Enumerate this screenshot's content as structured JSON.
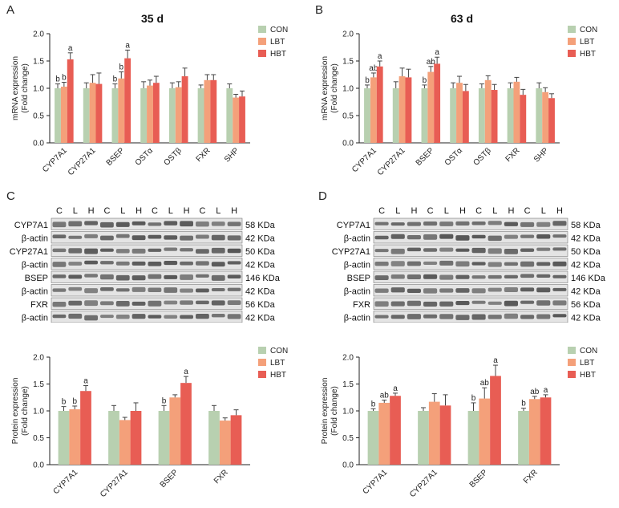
{
  "colors": {
    "con": "#b8d0b0",
    "lbt": "#f4a07a",
    "hbt": "#e85d54",
    "axis": "#222222"
  },
  "panel_letters": {
    "a": "A",
    "b": "B",
    "c": "C",
    "d": "D"
  },
  "legend": [
    "CON",
    "LBT",
    "HBT"
  ],
  "chart_data": [
    {
      "id": "A",
      "type": "bar",
      "title": "35 d",
      "ylabel_lines": [
        "mRNA expression",
        "(Fold change)"
      ],
      "ylim": [
        0,
        2.0
      ],
      "yticks": [
        "0.0",
        "0.5",
        "1.0",
        "1.5",
        "2.0"
      ],
      "categories": [
        "CYP7A1",
        "CYP27A1",
        "BSEP",
        "OSTα",
        "OSTβ",
        "FXR",
        "SHP"
      ],
      "series": [
        {
          "name": "CON",
          "values": [
            1.0,
            1.0,
            1.0,
            1.0,
            1.0,
            1.0,
            1.0
          ],
          "err": [
            0.08,
            0.1,
            0.08,
            0.12,
            0.1,
            0.06,
            0.08
          ]
        },
        {
          "name": "LBT",
          "values": [
            1.03,
            1.1,
            1.18,
            1.05,
            1.02,
            1.15,
            0.83
          ],
          "err": [
            0.08,
            0.15,
            0.12,
            0.1,
            0.1,
            0.1,
            0.06
          ]
        },
        {
          "name": "HBT",
          "values": [
            1.53,
            1.08,
            1.55,
            1.1,
            1.22,
            1.15,
            0.85
          ],
          "err": [
            0.12,
            0.2,
            0.15,
            0.12,
            0.15,
            0.1,
            0.1
          ]
        }
      ],
      "letters": [
        [
          "b",
          "b",
          "a"
        ],
        [
          "",
          "",
          ""
        ],
        [
          "b",
          "b",
          "a"
        ],
        [
          "",
          "",
          ""
        ],
        [
          "",
          "",
          ""
        ],
        [
          "",
          "",
          ""
        ],
        [
          "",
          "",
          ""
        ]
      ]
    },
    {
      "id": "B",
      "type": "bar",
      "title": "63 d",
      "ylabel_lines": [
        "mRNA expression",
        "(Fold change)"
      ],
      "ylim": [
        0,
        2.0
      ],
      "yticks": [
        "0.0",
        "0.5",
        "1.0",
        "1.5",
        "2.0"
      ],
      "categories": [
        "CYP7A1",
        "CYP27A1",
        "BSEP",
        "OSTα",
        "OSTβ",
        "FXR",
        "SHP"
      ],
      "series": [
        {
          "name": "CON",
          "values": [
            1.0,
            1.0,
            1.0,
            1.0,
            1.0,
            1.0,
            1.0
          ],
          "err": [
            0.06,
            0.12,
            0.06,
            0.1,
            0.08,
            0.1,
            0.1
          ]
        },
        {
          "name": "LBT",
          "values": [
            1.2,
            1.22,
            1.3,
            1.1,
            1.15,
            1.12,
            0.93
          ],
          "err": [
            0.08,
            0.15,
            0.1,
            0.12,
            0.08,
            0.08,
            0.08
          ]
        },
        {
          "name": "HBT",
          "values": [
            1.4,
            1.2,
            1.45,
            0.95,
            0.97,
            0.88,
            0.82
          ],
          "err": [
            0.1,
            0.15,
            0.12,
            0.12,
            0.1,
            0.1,
            0.08
          ]
        }
      ],
      "letters": [
        [
          "b",
          "ab",
          "a"
        ],
        [
          "",
          "",
          ""
        ],
        [
          "b",
          "ab",
          "a"
        ],
        [
          "",
          "",
          ""
        ],
        [
          "",
          "",
          ""
        ],
        [
          "",
          "",
          ""
        ],
        [
          "",
          "",
          ""
        ]
      ]
    },
    {
      "id": "C",
      "type": "bar",
      "title": "",
      "ylabel_lines": [
        "Protein expression",
        "(Fold change)"
      ],
      "ylim": [
        0,
        2.0
      ],
      "yticks": [
        "0.0",
        "0.5",
        "1.0",
        "1.5",
        "2.0"
      ],
      "categories": [
        "CYP7A1",
        "CYP27A1",
        "BSEP",
        "FXR"
      ],
      "series": [
        {
          "name": "CON",
          "values": [
            1.0,
            1.0,
            1.0,
            1.0
          ],
          "err": [
            0.08,
            0.1,
            0.1,
            0.1
          ]
        },
        {
          "name": "LBT",
          "values": [
            1.03,
            0.83,
            1.25,
            0.82
          ],
          "err": [
            0.06,
            0.05,
            0.05,
            0.05
          ]
        },
        {
          "name": "HBT",
          "values": [
            1.37,
            1.0,
            1.52,
            0.92
          ],
          "err": [
            0.1,
            0.15,
            0.12,
            0.1
          ]
        }
      ],
      "letters": [
        [
          "b",
          "b",
          "a"
        ],
        [
          "",
          "",
          ""
        ],
        [
          "b",
          "",
          "a"
        ],
        [
          "",
          "",
          ""
        ]
      ]
    },
    {
      "id": "D",
      "type": "bar",
      "title": "",
      "ylabel_lines": [
        "Protein expression",
        "(Fold change)"
      ],
      "ylim": [
        0,
        2.0
      ],
      "yticks": [
        "0.0",
        "0.5",
        "1.0",
        "1.5",
        "2.0"
      ],
      "categories": [
        "CYP7A1",
        "CYP27A1",
        "BSEP",
        "FXR"
      ],
      "series": [
        {
          "name": "CON",
          "values": [
            1.0,
            1.0,
            1.0,
            1.0
          ],
          "err": [
            0.04,
            0.06,
            0.15,
            0.05
          ]
        },
        {
          "name": "LBT",
          "values": [
            1.15,
            1.17,
            1.23,
            1.22
          ],
          "err": [
            0.05,
            0.15,
            0.2,
            0.05
          ]
        },
        {
          "name": "HBT",
          "values": [
            1.28,
            1.1,
            1.65,
            1.25
          ],
          "err": [
            0.05,
            0.2,
            0.2,
            0.05
          ]
        }
      ],
      "letters": [
        [
          "b",
          "ab",
          "a"
        ],
        [
          "",
          "",
          ""
        ],
        [
          "b",
          "ab",
          "a"
        ],
        [
          "b",
          "ab",
          "a"
        ]
      ]
    }
  ],
  "blots": [
    {
      "id": "C",
      "lane_labels": [
        "C",
        "L",
        "H",
        "C",
        "L",
        "H",
        "C",
        "L",
        "H",
        "C",
        "L",
        "H"
      ],
      "rows": [
        {
          "label": "CYP7A1",
          "kda": "58 KDa"
        },
        {
          "label": "β-actin",
          "kda": "42 KDa"
        },
        {
          "label": "CYP27A1",
          "kda": "50 KDa"
        },
        {
          "label": "β-actin",
          "kda": "42 KDa"
        },
        {
          "label": "BSEP",
          "kda": "146 KDa"
        },
        {
          "label": "β-actin",
          "kda": "42 KDa"
        },
        {
          "label": "FXR",
          "kda": "56 KDa"
        },
        {
          "label": "β-actin",
          "kda": "42 KDa"
        }
      ]
    },
    {
      "id": "D",
      "lane_labels": [
        "C",
        "L",
        "H",
        "C",
        "L",
        "H",
        "C",
        "L",
        "H",
        "C",
        "L",
        "H"
      ],
      "rows": [
        {
          "label": "CYP7A1",
          "kda": "58 KDa"
        },
        {
          "label": "β-actin",
          "kda": "42 KDa"
        },
        {
          "label": "CYP27A1",
          "kda": "50 KDa"
        },
        {
          "label": "β-actin",
          "kda": "42 KDa"
        },
        {
          "label": "BSEP",
          "kda": "146 KDa"
        },
        {
          "label": "β-actin",
          "kda": "42 KDa"
        },
        {
          "label": "FXR",
          "kda": "56 KDa"
        },
        {
          "label": "β-actin",
          "kda": "42 KDa"
        }
      ]
    }
  ]
}
